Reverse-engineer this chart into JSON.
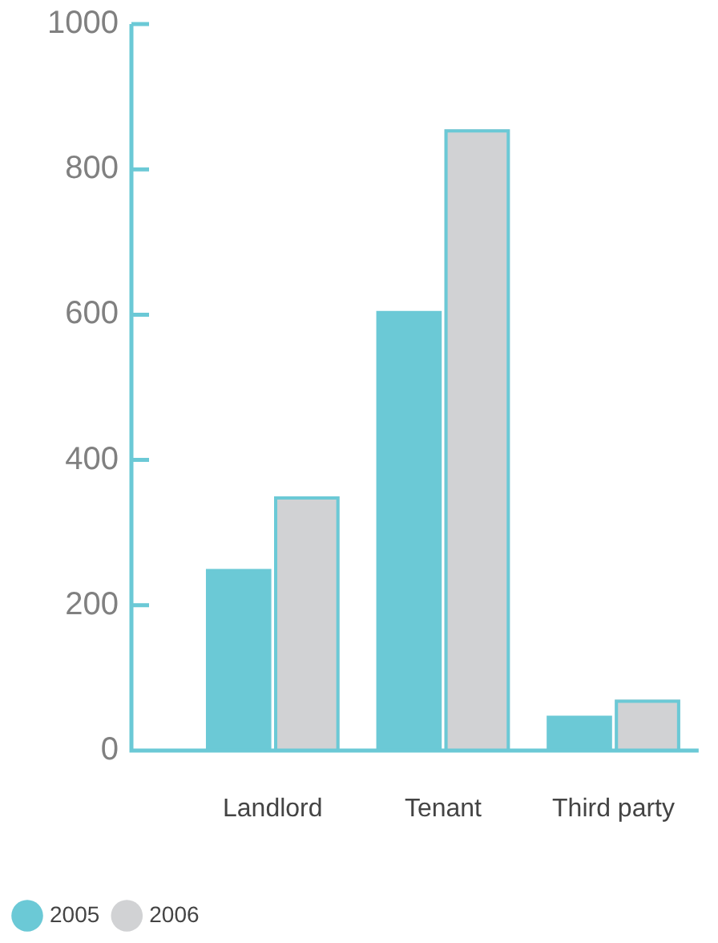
{
  "chart_data": {
    "type": "bar",
    "categories": [
      "Landlord",
      "Tenant",
      "Third party"
    ],
    "series": [
      {
        "name": "2005",
        "color": "#6bc9d6",
        "values": [
          250,
          605,
          48
        ]
      },
      {
        "name": "2006",
        "color": "#d1d2d4",
        "values": [
          350,
          855,
          70
        ]
      }
    ],
    "ylim": [
      0,
      1000
    ],
    "yticks": [
      0,
      200,
      400,
      600,
      800,
      1000
    ],
    "legend": "bottom left"
  }
}
